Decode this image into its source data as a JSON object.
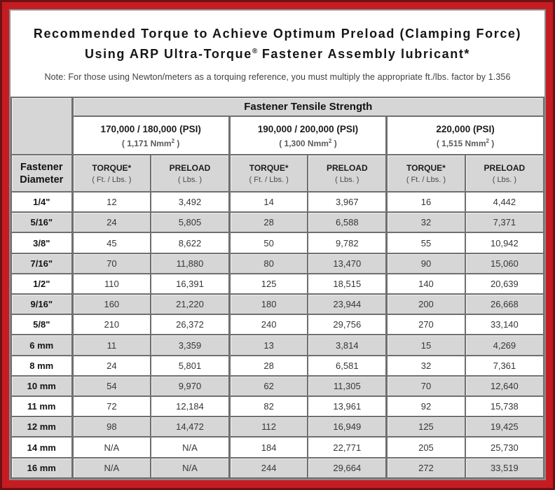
{
  "colors": {
    "frame_red": "#c41c22",
    "frame_dark_edge": "#6f1013",
    "cell_gray": "#d6d6d6",
    "table_border": "#6f6f6f"
  },
  "title": {
    "line1": "Recommended Torque to Achieve Optimum Preload (Clamping Force)",
    "line2_pre": "Using ARP Ultra-Torque",
    "line2_sup": "®",
    "line2_post": " Fastener Assembly lubricant*"
  },
  "note": "Note: For those using Newton/meters as a torquing reference, you must multiply the appropriate ft./lbs. factor by 1.356",
  "table": {
    "tensile_header": "Fastener Tensile Strength",
    "diameter_header_line1": "Fastener",
    "diameter_header_line2": "Diameter",
    "groups": [
      {
        "psi": "170,000 / 180,000 (PSI)",
        "nmm": "( 1,171 Nmm",
        "nmm_sup": "2",
        "nmm_close": " )"
      },
      {
        "psi": "190,000 / 200,000 (PSI)",
        "nmm": "( 1,300 Nmm",
        "nmm_sup": "2",
        "nmm_close": " )"
      },
      {
        "psi": "220,000 (PSI)",
        "nmm": "( 1,515 Nmm",
        "nmm_sup": "2",
        "nmm_close": " )"
      }
    ],
    "col_headers": {
      "torque": "TORQUE*",
      "torque_sub": "( Ft. / Lbs. )",
      "preload": "PRELOAD",
      "preload_sub": "( Lbs. )"
    },
    "rows": [
      {
        "d": "1/4\"",
        "v": [
          "12",
          "3,492",
          "14",
          "3,967",
          "16",
          "4,442"
        ]
      },
      {
        "d": "5/16\"",
        "v": [
          "24",
          "5,805",
          "28",
          "6,588",
          "32",
          "7,371"
        ]
      },
      {
        "d": "3/8\"",
        "v": [
          "45",
          "8,622",
          "50",
          "9,782",
          "55",
          "10,942"
        ]
      },
      {
        "d": "7/16\"",
        "v": [
          "70",
          "11,880",
          "80",
          "13,470",
          "90",
          "15,060"
        ]
      },
      {
        "d": "1/2\"",
        "v": [
          "110",
          "16,391",
          "125",
          "18,515",
          "140",
          "20,639"
        ]
      },
      {
        "d": "9/16\"",
        "v": [
          "160",
          "21,220",
          "180",
          "23,944",
          "200",
          "26,668"
        ]
      },
      {
        "d": "5/8\"",
        "v": [
          "210",
          "26,372",
          "240",
          "29,756",
          "270",
          "33,140"
        ]
      },
      {
        "d": "6 mm",
        "v": [
          "11",
          "3,359",
          "13",
          "3,814",
          "15",
          "4,269"
        ]
      },
      {
        "d": "8 mm",
        "v": [
          "24",
          "5,801",
          "28",
          "6,581",
          "32",
          "7,361"
        ]
      },
      {
        "d": "10 mm",
        "v": [
          "54",
          "9,970",
          "62",
          "11,305",
          "70",
          "12,640"
        ]
      },
      {
        "d": "11 mm",
        "v": [
          "72",
          "12,184",
          "82",
          "13,961",
          "92",
          "15,738"
        ]
      },
      {
        "d": "12 mm",
        "v": [
          "98",
          "14,472",
          "112",
          "16,949",
          "125",
          "19,425"
        ]
      },
      {
        "d": "14 mm",
        "v": [
          "N/A",
          "N/A",
          "184",
          "22,771",
          "205",
          "25,730"
        ]
      },
      {
        "d": "16 mm",
        "v": [
          "N/A",
          "N/A",
          "244",
          "29,664",
          "272",
          "33,519"
        ]
      }
    ]
  }
}
